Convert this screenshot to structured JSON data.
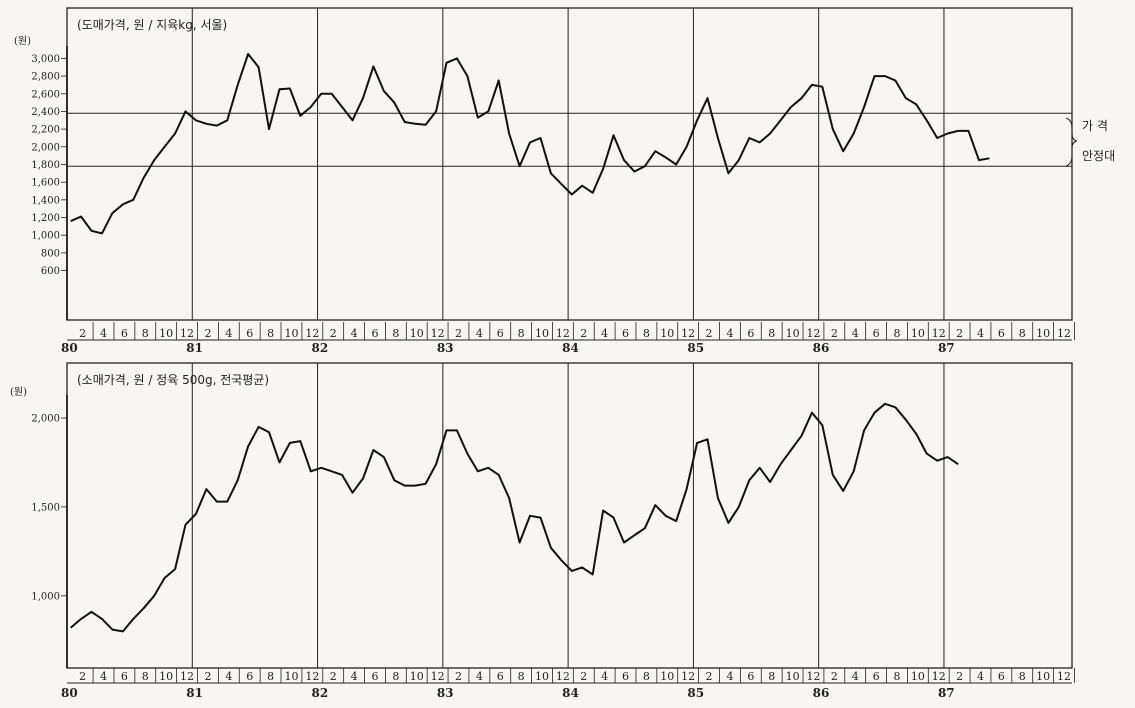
{
  "chart_data": [
    {
      "type": "line",
      "title": "(도매가격, 원 / 지육kg, 서울)",
      "yunit": "(원)",
      "ylim": [
        300,
        3100
      ],
      "yticks": [
        "600",
        "800",
        "1,000",
        "1,200",
        "1,400",
        "1,600",
        "1,800",
        "2,000",
        "2,200",
        "2,400",
        "2,600",
        "2,800",
        "3,000"
      ],
      "ytick_values": [
        600,
        800,
        1000,
        1200,
        1400,
        1600,
        1800,
        2000,
        2200,
        2400,
        2600,
        2800,
        3000
      ],
      "month_ticks": [
        "2",
        "4",
        "6",
        "8",
        "10",
        "12"
      ],
      "years": [
        "80",
        "81",
        "82",
        "83",
        "84",
        "85",
        "86",
        "87"
      ],
      "x_start": "1980-01",
      "reference_lines": [
        2380,
        1780
      ],
      "band_label": [
        "가  격",
        "안정대"
      ],
      "series": [
        {
          "values": [
            1160,
            1210,
            1050,
            1020,
            1250,
            1350,
            1400,
            1650,
            1850,
            2000,
            2150,
            2400,
            2300,
            2260,
            2240,
            2300,
            2700,
            3050,
            2900,
            2200,
            2650,
            2660,
            2350,
            2450,
            2600,
            2600,
            2450,
            2300,
            2550,
            2910,
            2630,
            2500,
            2280,
            2260,
            2250,
            2400,
            2950,
            3000,
            2800,
            2330,
            2400,
            2750,
            2150,
            1780,
            2050,
            2100,
            1700,
            1580,
            1460,
            1560,
            1480,
            1750,
            2130,
            1850,
            1720,
            1780,
            1950,
            1880,
            1800,
            2000,
            2300,
            2550,
            2100,
            1700,
            1850,
            2100,
            2050,
            2150,
            2300,
            2450,
            2550,
            2700,
            2680,
            2200,
            1950,
            2150,
            2450,
            2800,
            2800,
            2750,
            2550,
            2480,
            2300,
            2100,
            2150,
            2180,
            2180,
            1850,
            1870
          ]
        }
      ]
    },
    {
      "type": "line",
      "title": "(소매가격, 원 / 정육 500g, 전국평균)",
      "yunit": "(원)",
      "ylim": [
        600,
        2150
      ],
      "yticks": [
        "1,000",
        "1,500",
        "2,000"
      ],
      "ytick_values": [
        1000,
        1500,
        2000
      ],
      "month_ticks": [
        "2",
        "4",
        "6",
        "8",
        "10",
        "12"
      ],
      "years": [
        "80",
        "81",
        "82",
        "83",
        "84",
        "85",
        "86",
        "87"
      ],
      "x_start": "1980-01",
      "series": [
        {
          "values": [
            820,
            870,
            910,
            870,
            810,
            800,
            870,
            930,
            1000,
            1100,
            1150,
            1400,
            1460,
            1600,
            1530,
            1530,
            1650,
            1840,
            1950,
            1920,
            1750,
            1860,
            1870,
            1700,
            1720,
            1700,
            1680,
            1580,
            1660,
            1820,
            1780,
            1650,
            1620,
            1620,
            1630,
            1740,
            1930,
            1930,
            1800,
            1700,
            1720,
            1680,
            1550,
            1300,
            1450,
            1440,
            1270,
            1200,
            1140,
            1160,
            1120,
            1480,
            1440,
            1300,
            1340,
            1380,
            1510,
            1450,
            1420,
            1600,
            1860,
            1880,
            1550,
            1410,
            1500,
            1650,
            1720,
            1640,
            1740,
            1820,
            1900,
            2030,
            1960,
            1680,
            1590,
            1700,
            1930,
            2030,
            2080,
            2060,
            1990,
            1910,
            1800,
            1760,
            1780,
            1740
          ]
        }
      ]
    }
  ]
}
